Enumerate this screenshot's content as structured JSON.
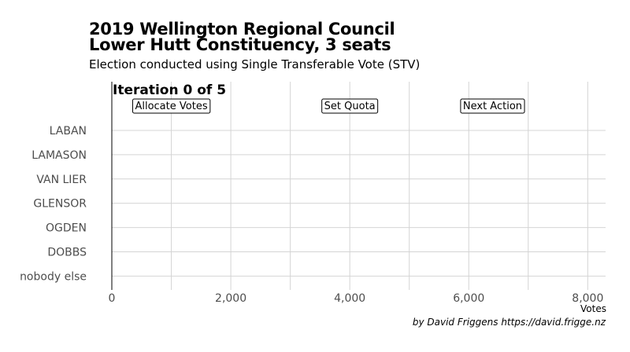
{
  "title_line1": "2019 Wellington Regional Council",
  "title_line2": "Lower Hutt Constituency, 3 seats",
  "subtitle": "Election conducted using Single Transferable Vote (STV)",
  "caption": "by David Friggens https://david.frigge.nz",
  "iteration_label": "Iteration 0 of 5",
  "annotations": [
    {
      "label": "Allocate Votes",
      "x": 1000
    },
    {
      "label": "Set Quota",
      "x": 4000
    },
    {
      "label": "Next Action",
      "x": 6400
    }
  ],
  "chart_data": {
    "type": "bar",
    "orientation": "horizontal",
    "categories": [
      "LABAN",
      "LAMASON",
      "VAN LIER",
      "GLENSOR",
      "OGDEN",
      "DOBBS",
      "nobody else"
    ],
    "values": [
      0,
      0,
      0,
      0,
      0,
      0,
      0
    ],
    "xlabel": "Votes",
    "xlim": [
      0,
      8300
    ],
    "xticks": [
      0,
      2000,
      4000,
      6000,
      8000
    ],
    "xtick_labels": [
      "0",
      "2,000",
      "4,000",
      "6,000",
      "8,000"
    ],
    "grid": true
  }
}
